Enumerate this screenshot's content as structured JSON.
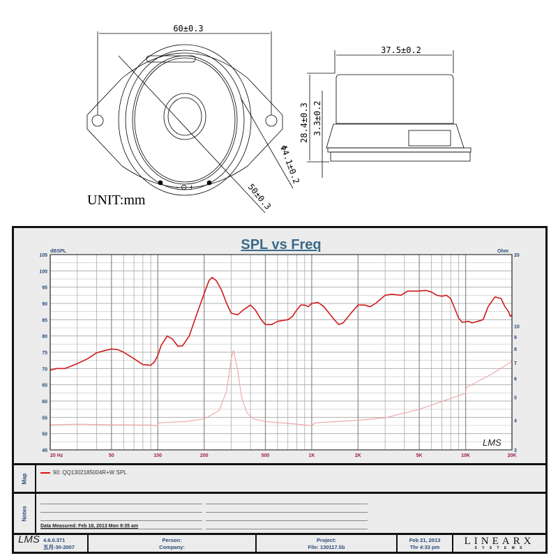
{
  "drawing": {
    "width_dim": "60±0.3",
    "depth_dim": "37.5±0.2",
    "height_dim": "28.4±0.3",
    "flange_dim": "3.3±0.2",
    "hole_dim": "Φ4.1±0.2",
    "cone_dim": "50±0.3",
    "unit": "UNIT:mm",
    "terminals": "- ⊙ +"
  },
  "chart_data": {
    "type": "line",
    "title": "SPL vs Freq",
    "ylabel": "dBSPL",
    "y2label": "Ohm",
    "xscale": "log",
    "xlim": [
      20,
      20000
    ],
    "ylim": [
      45,
      105
    ],
    "y2lim": [
      3,
      20
    ],
    "y2scale": "log",
    "grid": true,
    "xticks": [
      "20  Hz",
      "50",
      "100",
      "200",
      "500",
      "1K",
      "2K",
      "5K",
      "10K",
      "20K"
    ],
    "xtick_values": [
      20,
      50,
      100,
      200,
      500,
      1000,
      2000,
      5000,
      10000,
      20000
    ],
    "yticks": [
      105,
      100,
      95,
      90,
      85,
      80,
      75,
      70,
      65,
      60,
      55,
      50,
      45
    ],
    "y2ticks": [
      20,
      10,
      9,
      8,
      7,
      6,
      5,
      4,
      3
    ],
    "colors": {
      "spl": "#d01818",
      "impedance": "#f0a8a8",
      "title": "#3a6a8a"
    },
    "series": [
      {
        "name": "90: QQ1302185004R+W SPL",
        "axis": "left",
        "points": [
          [
            20,
            69.5
          ],
          [
            22,
            70
          ],
          [
            25,
            70
          ],
          [
            30,
            71.5
          ],
          [
            35,
            73
          ],
          [
            40,
            74.8
          ],
          [
            45,
            75.5
          ],
          [
            50,
            76
          ],
          [
            55,
            75.8
          ],
          [
            60,
            75
          ],
          [
            70,
            73
          ],
          [
            80,
            71.2
          ],
          [
            90,
            71
          ],
          [
            95,
            72
          ],
          [
            100,
            74
          ],
          [
            105,
            77
          ],
          [
            115,
            80
          ],
          [
            125,
            79
          ],
          [
            135,
            76.8
          ],
          [
            145,
            77
          ],
          [
            160,
            80
          ],
          [
            180,
            87
          ],
          [
            200,
            93
          ],
          [
            215,
            97
          ],
          [
            225,
            98
          ],
          [
            240,
            97
          ],
          [
            260,
            94
          ],
          [
            280,
            90
          ],
          [
            300,
            87
          ],
          [
            330,
            86.5
          ],
          [
            360,
            88
          ],
          [
            400,
            89.5
          ],
          [
            430,
            88
          ],
          [
            470,
            85
          ],
          [
            500,
            83.5
          ],
          [
            550,
            83.5
          ],
          [
            600,
            84.5
          ],
          [
            700,
            85
          ],
          [
            750,
            86
          ],
          [
            800,
            88
          ],
          [
            850,
            89.5
          ],
          [
            900,
            89.5
          ],
          [
            950,
            89
          ],
          [
            1000,
            90
          ],
          [
            1100,
            90.3
          ],
          [
            1200,
            89
          ],
          [
            1400,
            85
          ],
          [
            1500,
            83.5
          ],
          [
            1600,
            84
          ],
          [
            1800,
            87
          ],
          [
            2000,
            89.5
          ],
          [
            2200,
            89.5
          ],
          [
            2400,
            89
          ],
          [
            2600,
            90
          ],
          [
            3000,
            92.5
          ],
          [
            3300,
            92.8
          ],
          [
            3800,
            92.5
          ],
          [
            4200,
            93.8
          ],
          [
            5000,
            93.8
          ],
          [
            5500,
            94
          ],
          [
            6000,
            93.5
          ],
          [
            6500,
            92.5
          ],
          [
            7000,
            92.2
          ],
          [
            7500,
            92.5
          ],
          [
            8000,
            91.5
          ],
          [
            9000,
            85.5
          ],
          [
            9500,
            84.2
          ],
          [
            10500,
            84.5
          ],
          [
            11000,
            84
          ],
          [
            12000,
            84.5
          ],
          [
            13000,
            85
          ],
          [
            14000,
            89
          ],
          [
            15500,
            92
          ],
          [
            17000,
            91.5
          ],
          [
            18000,
            89
          ],
          [
            19000,
            87.5
          ],
          [
            19500,
            86
          ],
          [
            20000,
            86.5
          ]
        ]
      },
      {
        "axis": "right",
        "points": [
          [
            20,
            3.83
          ],
          [
            30,
            3.85
          ],
          [
            50,
            3.83
          ],
          [
            90,
            3.82
          ],
          [
            100,
            3.78
          ],
          [
            101,
            3.9
          ],
          [
            150,
            3.95
          ],
          [
            200,
            4.05
          ],
          [
            250,
            4.4
          ],
          [
            280,
            5.3
          ],
          [
            300,
            7.3
          ],
          [
            310,
            7.9
          ],
          [
            330,
            6.5
          ],
          [
            350,
            5
          ],
          [
            380,
            4.3
          ],
          [
            420,
            4.05
          ],
          [
            500,
            3.95
          ],
          [
            700,
            3.88
          ],
          [
            1000,
            3.8
          ],
          [
            1050,
            3.9
          ],
          [
            2000,
            4.0
          ],
          [
            3000,
            4.1
          ],
          [
            5000,
            4.45
          ],
          [
            7000,
            4.8
          ],
          [
            10000,
            5.2
          ],
          [
            10100,
            5.5
          ],
          [
            15000,
            6.3
          ],
          [
            20000,
            7.1
          ]
        ]
      }
    ]
  },
  "map": {
    "label": "Map",
    "legend": "90: QQ1302185004R+W SPL"
  },
  "notes": {
    "label": "Notes",
    "measured": "Data Measured: Feb 18, 2013  Mon  9:35 am"
  },
  "footer": {
    "logo": "LMS",
    "version": "4.6.0.371",
    "build_date": "五月-30-2007",
    "person": "Person:",
    "company": "Company:",
    "project": "Project:",
    "file": "File: 130117.lib",
    "date": "Feb 21, 2013",
    "time": "Thr  4:33 pm",
    "brand": "LINEARX",
    "brand_sub": "S Y S T E M S",
    "watermark": "LMS"
  }
}
